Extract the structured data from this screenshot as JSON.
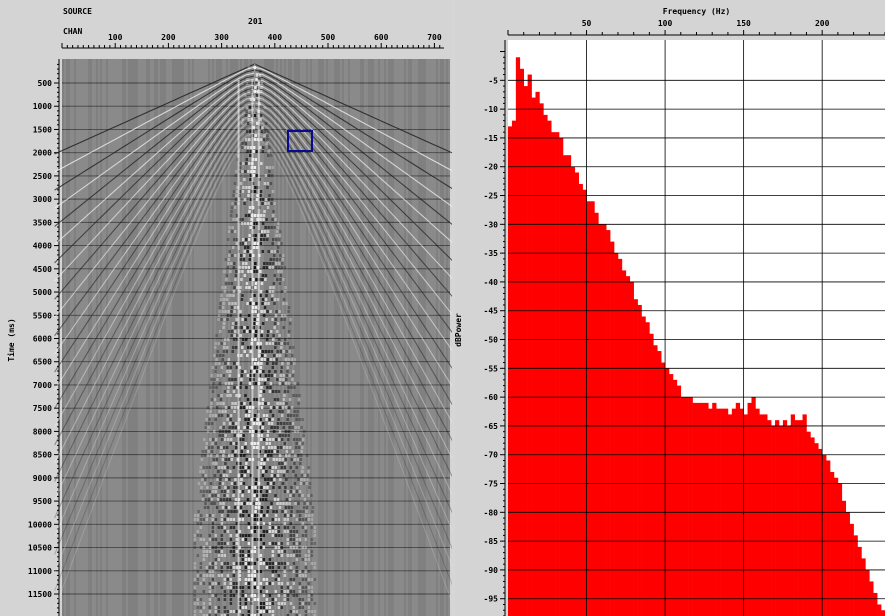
{
  "seismic": {
    "header": {
      "source_label": "SOURCE",
      "chan_label": "CHAN",
      "source_value": "201"
    },
    "chan_ticks": [
      "100",
      "200",
      "300",
      "400",
      "500",
      "600",
      "700"
    ],
    "time_axis_label": "Time (ms)",
    "time_ticks": [
      "500",
      "1000",
      "1500",
      "2000",
      "2500",
      "3000",
      "3500",
      "4000",
      "4500",
      "5000",
      "5500",
      "6000",
      "6500",
      "7000",
      "7500",
      "8000",
      "8500",
      "9000",
      "9500",
      "10000",
      "10500",
      "11000",
      "11500"
    ],
    "colors": {
      "background": "#858585",
      "traces": "#000000",
      "selection": "#0a0a90"
    }
  },
  "chart_data": {
    "type": "bar",
    "title": "",
    "xlabel": "Frequency (Hz)",
    "ylabel": "dBPower",
    "xlim": [
      0,
      240
    ],
    "ylim": [
      -98,
      2
    ],
    "x_ticks": [
      50,
      100,
      150,
      200
    ],
    "y_ticks": [
      -5,
      -10,
      -15,
      -20,
      -25,
      -30,
      -35,
      -40,
      -45,
      -50,
      -55,
      -60,
      -65,
      -70,
      -75,
      -80,
      -85,
      -90,
      -95
    ],
    "grid": true,
    "bar_color": "#ff0000",
    "bar_width_hz": 2.5,
    "x": [
      0,
      2.5,
      5,
      7.5,
      10,
      12.5,
      15,
      17.5,
      20,
      22.5,
      25,
      27.5,
      30,
      32.5,
      35,
      37.5,
      40,
      42.5,
      45,
      47.5,
      50,
      52.5,
      55,
      57.5,
      60,
      62.5,
      65,
      67.5,
      70,
      72.5,
      75,
      77.5,
      80,
      82.5,
      85,
      87.5,
      90,
      92.5,
      95,
      97.5,
      100,
      102.5,
      105,
      107.5,
      110,
      112.5,
      115,
      117.5,
      120,
      122.5,
      125,
      127.5,
      130,
      132.5,
      135,
      137.5,
      140,
      142.5,
      145,
      147.5,
      150,
      152.5,
      155,
      157.5,
      160,
      162.5,
      165,
      167.5,
      170,
      172.5,
      175,
      177.5,
      180,
      182.5,
      185,
      187.5,
      190,
      192.5,
      195,
      197.5,
      200,
      202.5,
      205,
      207.5,
      210,
      212.5,
      215,
      217.5,
      220,
      222.5,
      225,
      227.5,
      230,
      232.5,
      235,
      237.5
    ],
    "values": [
      -13,
      -12,
      -1,
      -3,
      -6,
      -4,
      -8,
      -7,
      -9,
      -11,
      -12,
      -14,
      -14,
      -15,
      -18,
      -18,
      -20,
      -21,
      -23,
      -24,
      -26,
      -26,
      -28,
      -30,
      -30,
      -31,
      -33,
      -35,
      -36,
      -38,
      -39,
      -40,
      -43,
      -44,
      -46,
      -47,
      -49,
      -51,
      -52,
      -54,
      -55,
      -56,
      -57,
      -58,
      -60,
      -60,
      -60,
      -61,
      -61,
      -61,
      -61,
      -62,
      -61,
      -62,
      -62,
      -62,
      -63,
      -62,
      -61,
      -62,
      -63,
      -61,
      -60,
      -62,
      -63,
      -63,
      -64,
      -65,
      -64,
      -65,
      -64,
      -65,
      -63,
      -64,
      -64,
      -63,
      -66,
      -67,
      -68,
      -69,
      -70,
      -71,
      -73,
      -74,
      -75,
      -78,
      -80,
      -82,
      -84,
      -86,
      -88,
      -90,
      -92,
      -94,
      -96,
      -97
    ]
  }
}
